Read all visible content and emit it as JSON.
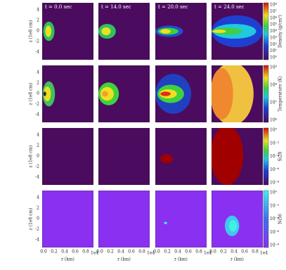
{
  "columns": [
    {
      "title": "t = 0.0 sec"
    },
    {
      "title": "t = 14.0 sec"
    },
    {
      "title": "t = 20.0 sec"
    },
    {
      "title": "t = 24.0 sec"
    }
  ],
  "rows": [
    {
      "label": "Density (g/cm³)",
      "colorbar_ticks": [
        "10⁸",
        "10⁷",
        "10⁶",
        "10⁵",
        "10⁴",
        "10³",
        "10²",
        "10¹",
        "10⁰"
      ]
    },
    {
      "label": "Temperature (K)",
      "colorbar_ticks": [
        "10⁹",
        "10⁸",
        "10⁷",
        "10⁶"
      ]
    },
    {
      "label": "Si28",
      "colorbar_ticks": [
        "10⁰",
        "10⁻²",
        "10⁻⁴",
        "10⁻⁶",
        "10⁻⁸"
      ]
    },
    {
      "label": "Ni56",
      "colorbar_ticks": [
        "10⁰",
        "10⁻²",
        "10⁻⁴",
        "10⁻⁶",
        "10⁻⁸"
      ]
    }
  ],
  "axes": {
    "y_label": "z (1e8 cm)",
    "y_ticks": [
      "4",
      "2",
      "0",
      "-2",
      "-4"
    ],
    "x_label": "r (km)",
    "x_ticks": [
      "0.0",
      "0.2",
      "0.4",
      "0.6",
      "0.8"
    ],
    "x_scale": "1e4"
  }
}
